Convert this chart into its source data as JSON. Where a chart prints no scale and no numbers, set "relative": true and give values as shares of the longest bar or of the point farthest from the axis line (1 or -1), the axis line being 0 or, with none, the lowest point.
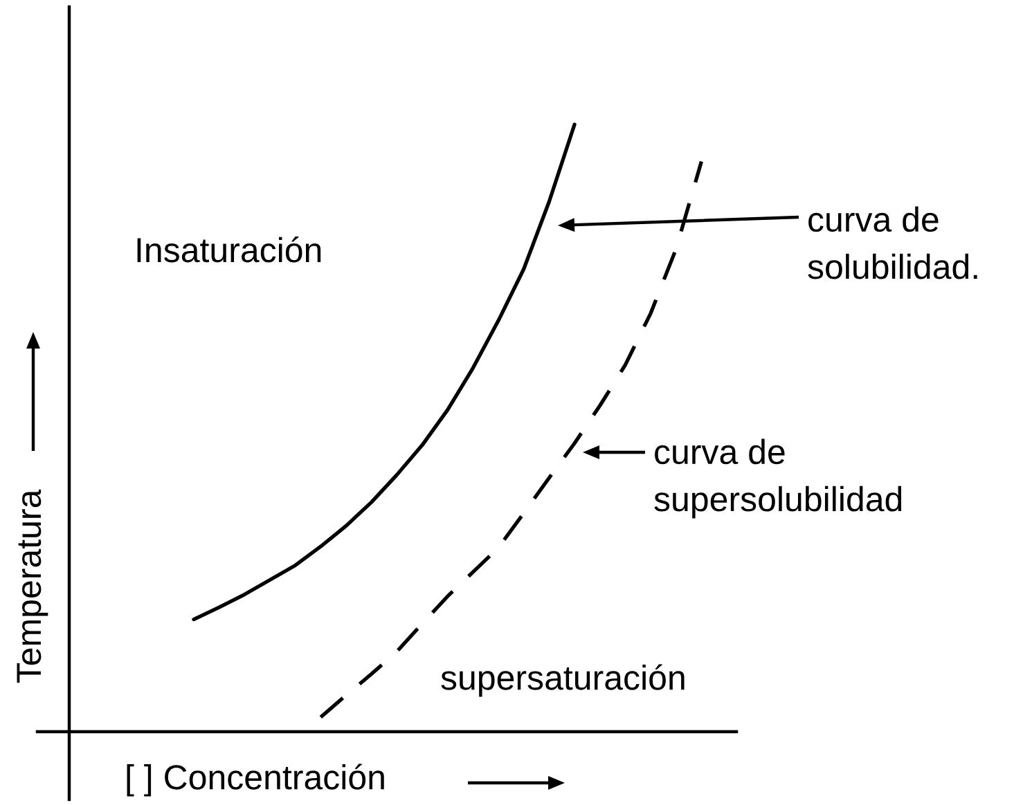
{
  "chart_data": {
    "type": "line",
    "relative": true,
    "xlabel": "[ ] Concentración",
    "ylabel": "Temperatura",
    "categories": [
      null,
      null,
      null,
      null,
      null,
      null,
      null,
      null,
      null,
      null,
      null,
      null,
      null,
      null,
      null,
      null,
      null,
      null,
      null,
      null,
      null
    ],
    "series": [
      {
        "color": "#000000",
        "line_style": "solid",
        "values": [
          0.185,
          0.205,
          0.226,
          0.25,
          0.274,
          0.305,
          0.339,
          0.378,
          0.423,
          0.472,
          0.53,
          0.599,
          0.677,
          0.762,
          0.873,
          1.0,
          null,
          null,
          null,
          null,
          null
        ]
      },
      {
        "color": "#000000",
        "line_style": "dashed",
        "values": [
          null,
          null,
          null,
          null,
          null,
          0.024,
          0.06,
          0.095,
          0.132,
          0.178,
          0.223,
          0.263,
          0.303,
          0.36,
          0.418,
          0.475,
          0.537,
          0.604,
          0.689,
          0.795,
          0.939
        ]
      }
    ],
    "annotations": [
      "Insaturación",
      "curva de\nsolubilidad.",
      "curva de\nsupersolubilidad",
      "supersaturación"
    ]
  }
}
